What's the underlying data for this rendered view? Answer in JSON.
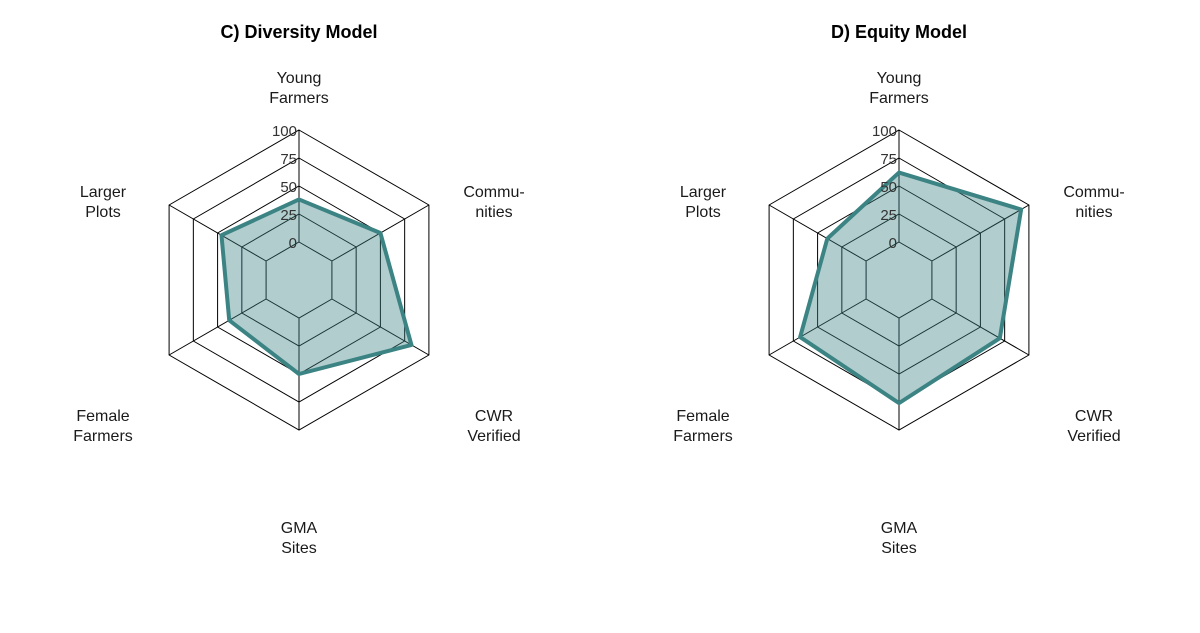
{
  "chart_data": [
    {
      "type": "radar",
      "title": "C) Diversity Model",
      "axes": [
        {
          "label_lines": [
            "Young",
            "Farmers"
          ]
        },
        {
          "label_lines": [
            "Commu-",
            "nities"
          ]
        },
        {
          "label_lines": [
            "CWR",
            "Verified"
          ]
        },
        {
          "label_lines": [
            "GMA",
            "Sites"
          ]
        },
        {
          "label_lines": [
            "Female",
            "Farmers"
          ]
        },
        {
          "label_lines": [
            "Larger",
            "Plots"
          ]
        }
      ],
      "ticks": [
        "0",
        "25",
        "50",
        "75",
        "100"
      ],
      "range": [
        0,
        100
      ],
      "grid": true,
      "series": [
        {
          "values": [
            38,
            50,
            82,
            50,
            38,
            46
          ]
        }
      ]
    },
    {
      "type": "radar",
      "title": "D) Equity Model",
      "axes": [
        {
          "label_lines": [
            "Young",
            "Farmers"
          ]
        },
        {
          "label_lines": [
            "Commu-",
            "nities"
          ]
        },
        {
          "label_lines": [
            "CWR",
            "Verified"
          ]
        },
        {
          "label_lines": [
            "GMA",
            "Sites"
          ]
        },
        {
          "label_lines": [
            "Female",
            "Farmers"
          ]
        },
        {
          "label_lines": [
            "Larger",
            "Plots"
          ]
        }
      ],
      "ticks": [
        "0",
        "25",
        "50",
        "75",
        "100"
      ],
      "range": [
        0,
        100
      ],
      "grid": true,
      "series": [
        {
          "values": [
            62,
            92,
            70,
            76,
            68,
            40
          ]
        }
      ]
    }
  ],
  "colors": {
    "series_stroke": "#3c8384",
    "series_fill": "#3c8384",
    "grid": "#000000"
  }
}
